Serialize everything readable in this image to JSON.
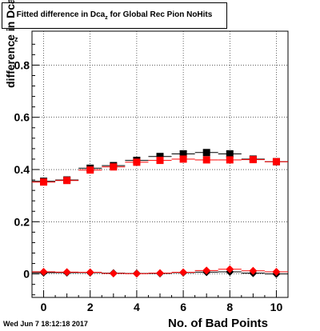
{
  "chart_data": {
    "type": "scatter",
    "title": "Fitted difference in Dca",
    "title_subscript": "z",
    "title_suffix": "for Global Rec Pion NoHits",
    "xlabel": "No. of Bad Points",
    "ylabel": "difference in Dca",
    "ylabel_subscript": "z",
    "xlim": [
      -0.5,
      10.5
    ],
    "ylim": [
      -0.09,
      0.93
    ],
    "x_ticks": [
      0,
      2,
      4,
      6,
      8,
      10
    ],
    "y_ticks": [
      0,
      0.2,
      0.4,
      0.6,
      0.8
    ],
    "y_tick_labels": [
      "0",
      "0.2",
      "0.4",
      "0.6",
      "0.8"
    ],
    "grid": true,
    "series": [
      {
        "marker": "square",
        "color": "#000000",
        "x": [
          0,
          1,
          2,
          3,
          4,
          5,
          6,
          7,
          8,
          9,
          10
        ],
        "y": [
          0.355,
          0.36,
          0.405,
          0.415,
          0.435,
          0.45,
          0.46,
          0.465,
          0.46,
          0.44,
          0.43
        ]
      },
      {
        "marker": "square",
        "color": "#ff0000",
        "x": [
          0,
          1,
          2,
          3,
          4,
          5,
          6,
          7,
          8,
          9,
          10
        ],
        "y": [
          0.352,
          0.358,
          0.398,
          0.41,
          0.428,
          0.435,
          0.44,
          0.437,
          0.437,
          0.438,
          0.43
        ]
      },
      {
        "marker": "diamond",
        "color": "#000000",
        "x": [
          0,
          1,
          2,
          3,
          4,
          5,
          6,
          7,
          8,
          9,
          10
        ],
        "y": [
          0.005,
          0.005,
          0.005,
          0.003,
          0.002,
          0.002,
          0.005,
          0.007,
          0.008,
          0.003,
          0.0
        ]
      },
      {
        "marker": "diamond",
        "color": "#ff0000",
        "x": [
          0,
          1,
          2,
          3,
          4,
          5,
          6,
          7,
          8,
          9,
          10
        ],
        "y": [
          0.008,
          0.007,
          0.006,
          0.002,
          0.001,
          0.003,
          0.006,
          0.013,
          0.018,
          0.012,
          0.008
        ]
      }
    ]
  },
  "footer": {
    "datestamp": "Wed Jun  7 18:12:18 2017"
  }
}
